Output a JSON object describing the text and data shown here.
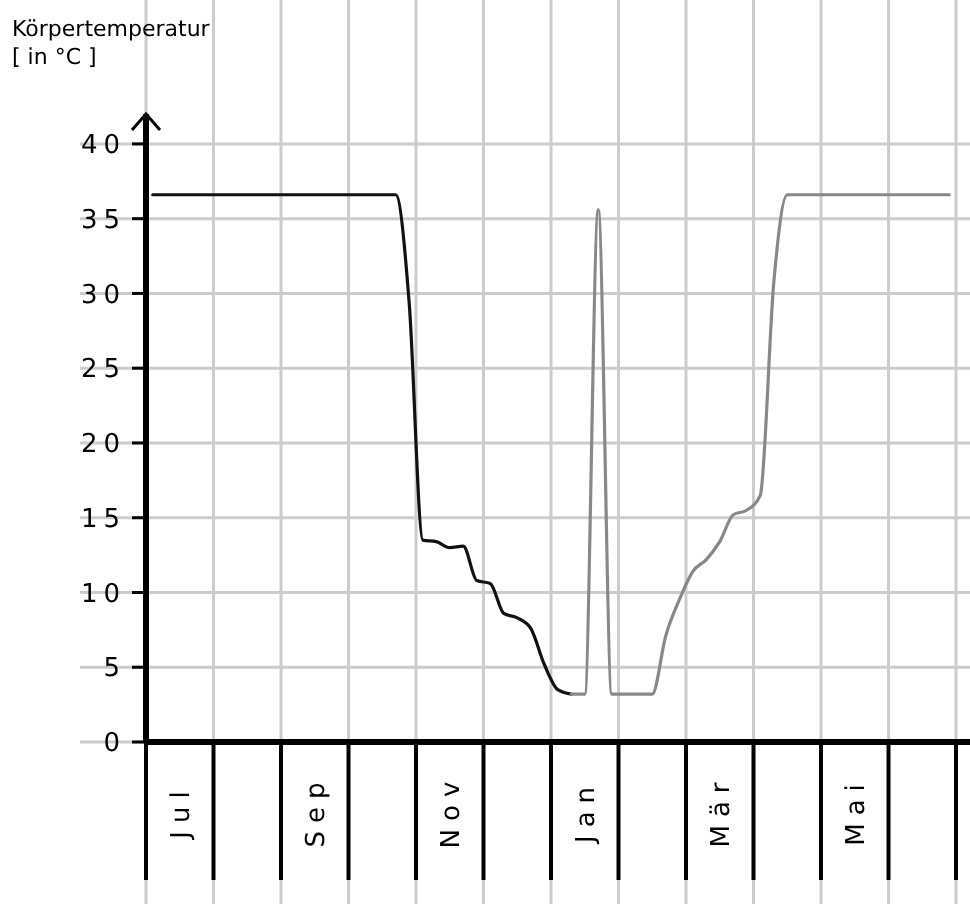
{
  "chart_data": {
    "type": "line",
    "ylabel": "Körpertemperatur\n[ in °C ]",
    "categories": [
      null,
      null,
      "Jul",
      null,
      null,
      null,
      null,
      null,
      null,
      null,
      null,
      null,
      "Sep",
      null,
      null,
      null,
      null,
      null,
      null,
      null,
      null,
      null,
      "Nov",
      null,
      null,
      null,
      null,
      null,
      null,
      null,
      null,
      null,
      "Jan",
      null,
      null,
      null,
      null,
      null,
      null,
      null,
      null,
      null,
      "Mär",
      null,
      null,
      null,
      null,
      null,
      null,
      null,
      null,
      null,
      "Mai",
      null,
      null,
      null,
      null,
      null,
      null,
      null
    ],
    "series": [
      {
        "color": "#111111",
        "values": [
          36.6,
          36.6,
          36.6,
          36.6,
          36.6,
          36.6,
          36.6,
          36.6,
          36.6,
          36.6,
          36.6,
          36.6,
          36.6,
          36.6,
          36.6,
          36.6,
          36.6,
          36.6,
          36.6,
          29.3,
          13.5,
          13.4,
          13.0,
          13.1,
          10.8,
          10.6,
          8.6,
          8.3,
          7.6,
          5.2,
          3.5,
          3.2,
          null,
          null,
          null,
          null,
          null,
          null,
          null,
          null,
          null,
          null,
          null,
          null,
          null,
          null,
          null,
          null,
          null,
          null,
          null,
          null,
          null,
          null,
          null,
          null,
          null,
          null,
          null,
          null
        ]
      },
      {
        "color": "#888888",
        "values": [
          null,
          null,
          null,
          null,
          null,
          null,
          null,
          null,
          null,
          null,
          null,
          null,
          null,
          null,
          null,
          null,
          null,
          null,
          null,
          null,
          null,
          null,
          null,
          null,
          null,
          null,
          null,
          null,
          null,
          null,
          null,
          3.2,
          3.2,
          35.6,
          3.2,
          3.2,
          3.2,
          3.2,
          7.1,
          9.5,
          11.4,
          12.2,
          13.4,
          15.2,
          15.5,
          16.5,
          30.7,
          36.6,
          36.6,
          36.6,
          36.6,
          36.6,
          36.6,
          36.6,
          36.6,
          36.6,
          36.6,
          36.6,
          36.6,
          36.6
        ]
      }
    ],
    "ylim": [
      0,
      42
    ],
    "yticks": [
      0,
      5,
      10,
      15,
      20,
      25,
      30,
      35,
      40
    ],
    "grid": true,
    "marker": "none",
    "line_style": "solid"
  }
}
